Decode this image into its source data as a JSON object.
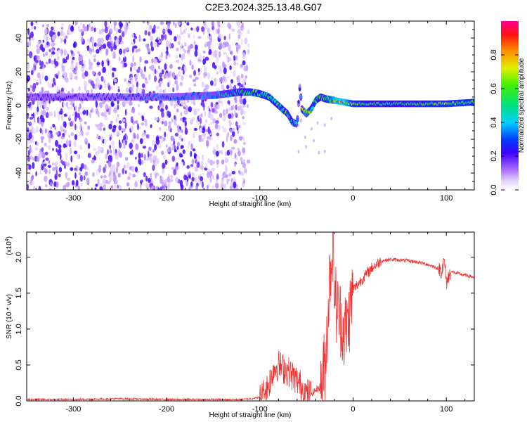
{
  "title": "C2E3.2024.325.13.48.G07",
  "colors": {
    "snr_line": "#ee3333",
    "background": "#ffffff"
  },
  "chart_data": [
    {
      "type": "heatmap",
      "xlabel": "Height of straight line (km)",
      "ylabel": "Frequency (Hz)",
      "xlim": [
        -350,
        130
      ],
      "ylim": [
        -50,
        50
      ],
      "xticks": [
        -300,
        -200,
        -100,
        0,
        100
      ],
      "yticks": [
        -40,
        -20,
        0,
        20,
        40
      ],
      "colorbar": {
        "label": "Normalized spectral amplitude",
        "range": [
          0.0,
          1.0
        ],
        "ticks": [
          0.0,
          0.2,
          0.4,
          0.6,
          0.8
        ],
        "colormap": "rainbow (white-violet-blue-cyan-green-yellow-red-magenta)"
      },
      "signal_trace": {
        "x": [
          -350,
          -300,
          -250,
          -200,
          -150,
          -120,
          -110,
          -100,
          -90,
          -80,
          -70,
          -65,
          -60,
          -57,
          -55,
          -50,
          -45,
          -40,
          -35,
          -30,
          -20,
          -10,
          0,
          20,
          50,
          100,
          130
        ],
        "freq": [
          5,
          5,
          5,
          5,
          6,
          8,
          8,
          7,
          5,
          0,
          -5,
          -10,
          -11,
          12,
          -2,
          -5,
          -2,
          3,
          5,
          4,
          3,
          2,
          1,
          1,
          1,
          1,
          2
        ],
        "amplitude": [
          0.2,
          0.2,
          0.25,
          0.3,
          0.35,
          0.5,
          0.6,
          0.55,
          0.6,
          0.55,
          0.55,
          0.5,
          0.4,
          0.2,
          0.6,
          0.8,
          0.55,
          0.6,
          0.5,
          0.55,
          0.85,
          0.9,
          0.6,
          0.5,
          0.5,
          0.6,
          0.6
        ]
      },
      "noise_region_x": [
        -350,
        -120
      ]
    },
    {
      "type": "line",
      "xlabel": "Height of straight line (km)",
      "ylabel": "SNR (10 * v/v)",
      "y_multiplier": "(x10",
      "y_multiplier_exp": "4",
      "y_multiplier_close": ")",
      "xlim": [
        -350,
        130
      ],
      "ylim": [
        0,
        2.35
      ],
      "xticks": [
        -300,
        -200,
        -100,
        0,
        100
      ],
      "yticks": [
        0.0,
        0.5,
        1.0,
        1.5,
        2.0
      ],
      "ytick_labels": [
        "0.0",
        "0.5",
        "1.0",
        "1.5",
        "2.0"
      ],
      "series": [
        {
          "x": [
            -350,
            -300,
            -250,
            -200,
            -150,
            -120,
            -110,
            -100,
            -95,
            -90,
            -85,
            -80,
            -75,
            -70,
            -65,
            -60,
            -55,
            -50,
            -45,
            -40,
            -35,
            -30,
            -27,
            -25,
            -22,
            -20,
            -18,
            -15,
            -12,
            -10,
            -5,
            0,
            10,
            20,
            30,
            40,
            50,
            60,
            70,
            80,
            90,
            95,
            98,
            100,
            105,
            110,
            120,
            130
          ],
          "y": [
            0.02,
            0.02,
            0.03,
            0.02,
            0.02,
            0.02,
            0.03,
            0.05,
            0.12,
            0.25,
            0.45,
            0.5,
            0.45,
            0.42,
            0.35,
            0.28,
            0.2,
            0.1,
            0.1,
            0.15,
            0.2,
            0.5,
            1.2,
            1.7,
            2.2,
            1.6,
            1.3,
            1.2,
            1.1,
            0.95,
            1.1,
            1.55,
            1.7,
            1.85,
            1.95,
            1.97,
            1.96,
            1.95,
            1.93,
            1.9,
            1.85,
            1.82,
            1.95,
            1.65,
            1.8,
            1.78,
            1.75,
            1.72
          ]
        }
      ]
    }
  ]
}
